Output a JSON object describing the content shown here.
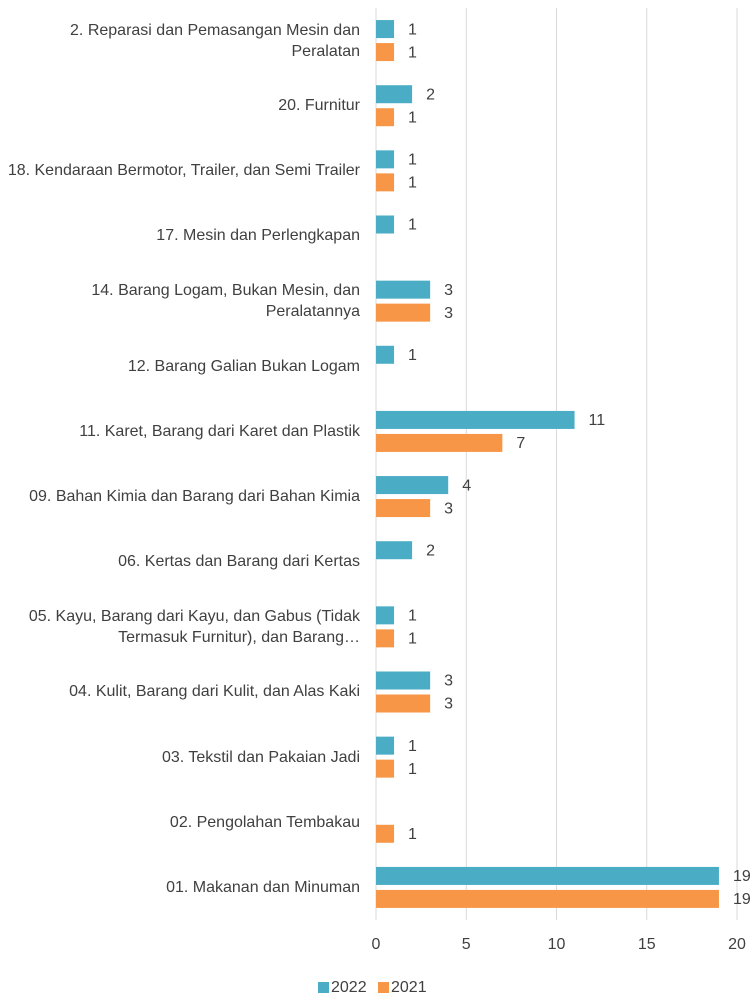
{
  "chart_data": {
    "type": "bar",
    "orientation": "horizontal",
    "categories": [
      "2. Reparasi dan Pemasangan Mesin dan Peralatan",
      "20. Furnitur",
      "18. Kendaraan Bermotor, Trailer, dan Semi Trailer",
      "17. Mesin dan Perlengkapan",
      "14. Barang Logam, Bukan Mesin, dan Peralatannya",
      "12. Barang Galian Bukan Logam",
      "11. Karet, Barang dari Karet dan Plastik",
      "09. Bahan Kimia dan Barang dari Bahan Kimia",
      "06. Kertas dan Barang dari Kertas",
      "05. Kayu, Barang dari Kayu, dan Gabus (Tidak Termasuk Furnitur), dan Barang…",
      "04. Kulit, Barang dari Kulit, dan Alas Kaki",
      "03. Tekstil dan Pakaian Jadi",
      "02. Pengolahan Tembakau",
      "01. Makanan dan Minuman"
    ],
    "series": [
      {
        "name": "2022",
        "color": "#4aacc5",
        "values": [
          1,
          2,
          1,
          1,
          3,
          1,
          11,
          4,
          2,
          1,
          3,
          1,
          null,
          19
        ]
      },
      {
        "name": "2021",
        "color": "#f79646",
        "values": [
          1,
          1,
          1,
          null,
          3,
          null,
          7,
          3,
          null,
          1,
          3,
          1,
          1,
          19
        ]
      }
    ],
    "xlim": [
      0,
      20
    ],
    "xticks": [
      0,
      5,
      10,
      15,
      20
    ],
    "grid": true,
    "legend": "bottom"
  }
}
